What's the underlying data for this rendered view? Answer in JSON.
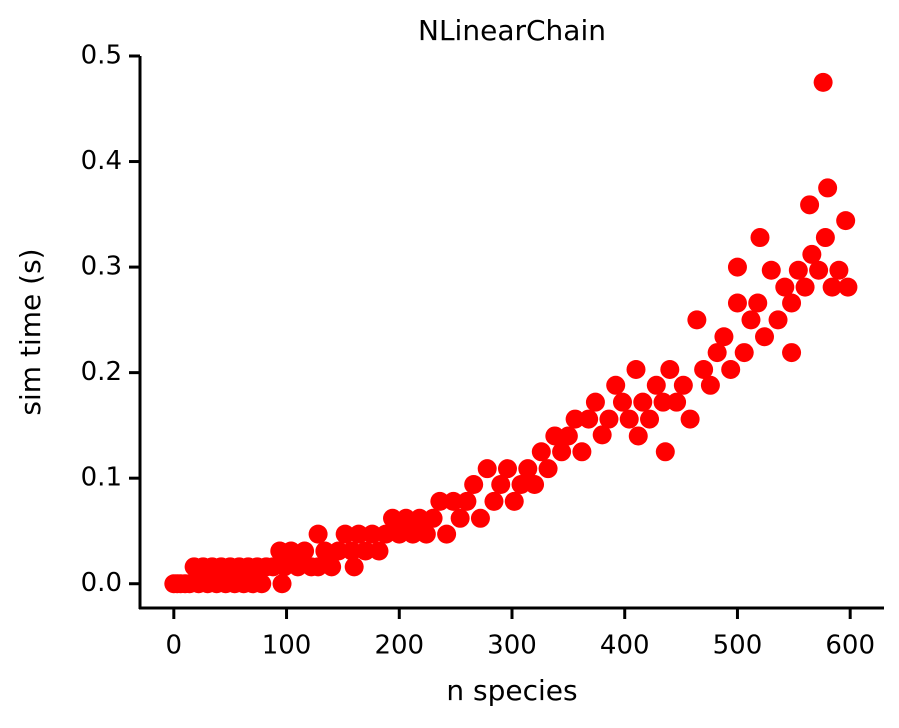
{
  "chart_data": {
    "type": "scatter",
    "title": "NLinearChain",
    "xlabel": "n species",
    "ylabel": "sim time (s)",
    "color": "#ff0000",
    "xlim": [
      -30,
      630
    ],
    "ylim": [
      -0.023,
      0.5
    ],
    "xticks": [
      0,
      100,
      200,
      300,
      400,
      500,
      600
    ],
    "yticks": [
      {
        "value": 0,
        "label": "0.0"
      },
      0.1,
      0.2,
      0.3,
      0.4,
      0.5
    ],
    "x": [
      0,
      3,
      6,
      10,
      14,
      18,
      22,
      26,
      30,
      34,
      38,
      42,
      46,
      50,
      54,
      58,
      62,
      66,
      70,
      74,
      78,
      82,
      88,
      94,
      98,
      104,
      110,
      116,
      122,
      128,
      134,
      140,
      146,
      152,
      158,
      164,
      170,
      176,
      182,
      188,
      194,
      200,
      206,
      212,
      218,
      224,
      230,
      236,
      242,
      248,
      254,
      260,
      266,
      272,
      278,
      284,
      290,
      296,
      302,
      308,
      314,
      320,
      326,
      332,
      338,
      344,
      350,
      356,
      362,
      368,
      374,
      380,
      386,
      392,
      398,
      404,
      410,
      416,
      422,
      428,
      434,
      440,
      446,
      452,
      458,
      464,
      470,
      476,
      482,
      488,
      494,
      500,
      506,
      512,
      518,
      524,
      530,
      536,
      542,
      548,
      554,
      560,
      566,
      572,
      578,
      584,
      590,
      596,
      576,
      564,
      520,
      580,
      598,
      548,
      500,
      436,
      96,
      128,
      160,
      412
    ],
    "values": [
      0,
      0,
      0,
      0,
      0,
      0.016,
      0,
      0.016,
      0,
      0.016,
      0,
      0.016,
      0,
      0.016,
      0,
      0.016,
      0,
      0.016,
      0,
      0.016,
      0,
      0.016,
      0.016,
      0.031,
      0.016,
      0.031,
      0.016,
      0.031,
      0.016,
      0.047,
      0.031,
      0.016,
      0.031,
      0.047,
      0.031,
      0.047,
      0.031,
      0.047,
      0.031,
      0.047,
      0.062,
      0.047,
      0.062,
      0.047,
      0.062,
      0.047,
      0.062,
      0.078,
      0.047,
      0.078,
      0.062,
      0.078,
      0.094,
      0.062,
      0.109,
      0.078,
      0.094,
      0.109,
      0.078,
      0.094,
      0.109,
      0.094,
      0.125,
      0.109,
      0.14,
      0.125,
      0.14,
      0.156,
      0.125,
      0.156,
      0.172,
      0.141,
      0.156,
      0.188,
      0.172,
      0.156,
      0.203,
      0.172,
      0.156,
      0.188,
      0.172,
      0.203,
      0.172,
      0.188,
      0.156,
      0.25,
      0.203,
      0.188,
      0.219,
      0.234,
      0.203,
      0.266,
      0.219,
      0.25,
      0.266,
      0.234,
      0.297,
      0.25,
      0.281,
      0.266,
      0.297,
      0.281,
      0.312,
      0.297,
      0.328,
      0.281,
      0.297,
      0.344,
      0.475,
      0.359,
      0.328,
      0.375,
      0.281,
      0.219,
      0.3,
      0.125,
      0,
      0.016,
      0.016,
      0.14
    ]
  }
}
